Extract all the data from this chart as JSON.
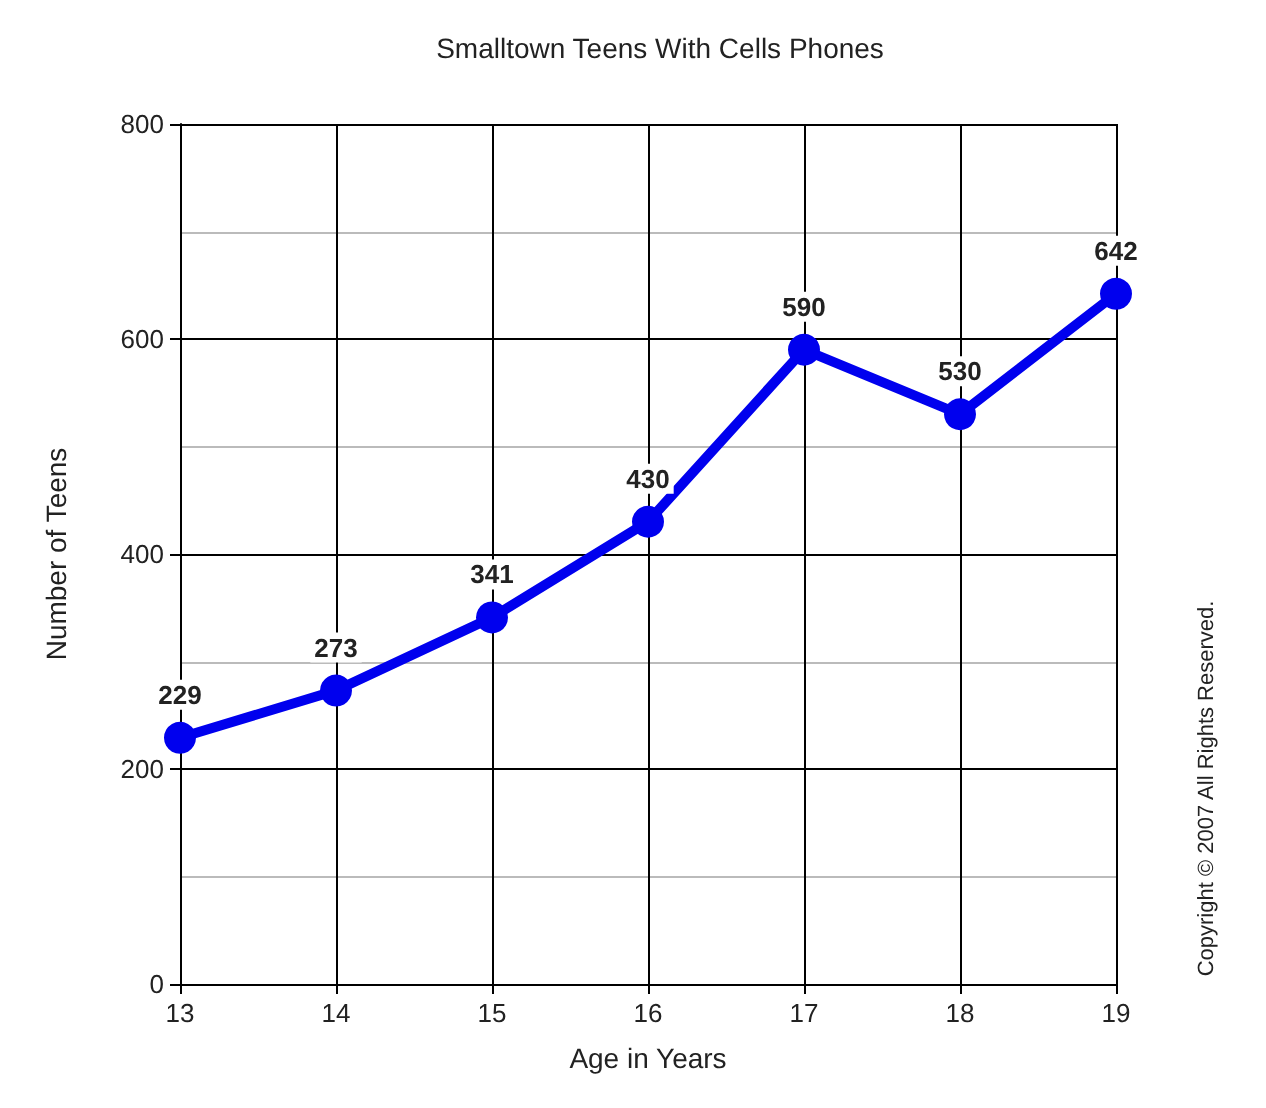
{
  "chart_data": {
    "type": "line",
    "title": "Smalltown Teens With Cells Phones",
    "xlabel": "Age in Years",
    "ylabel": "Number of Teens",
    "x": [
      13,
      14,
      15,
      16,
      17,
      18,
      19
    ],
    "series": [
      {
        "color": "#0000ee",
        "values": [
          229,
          273,
          341,
          430,
          590,
          530,
          642
        ]
      }
    ],
    "xlim": [
      13,
      19
    ],
    "xticks": [
      13,
      14,
      15,
      16,
      17,
      18,
      19
    ],
    "ylim": [
      0,
      800
    ],
    "yticks": [
      0,
      200,
      400,
      600,
      800
    ],
    "grid": true,
    "marker": "circle",
    "line_style": "solid",
    "data_labels": true,
    "annotations": [
      "Copyright © 2007 All Rights Reserved."
    ]
  }
}
